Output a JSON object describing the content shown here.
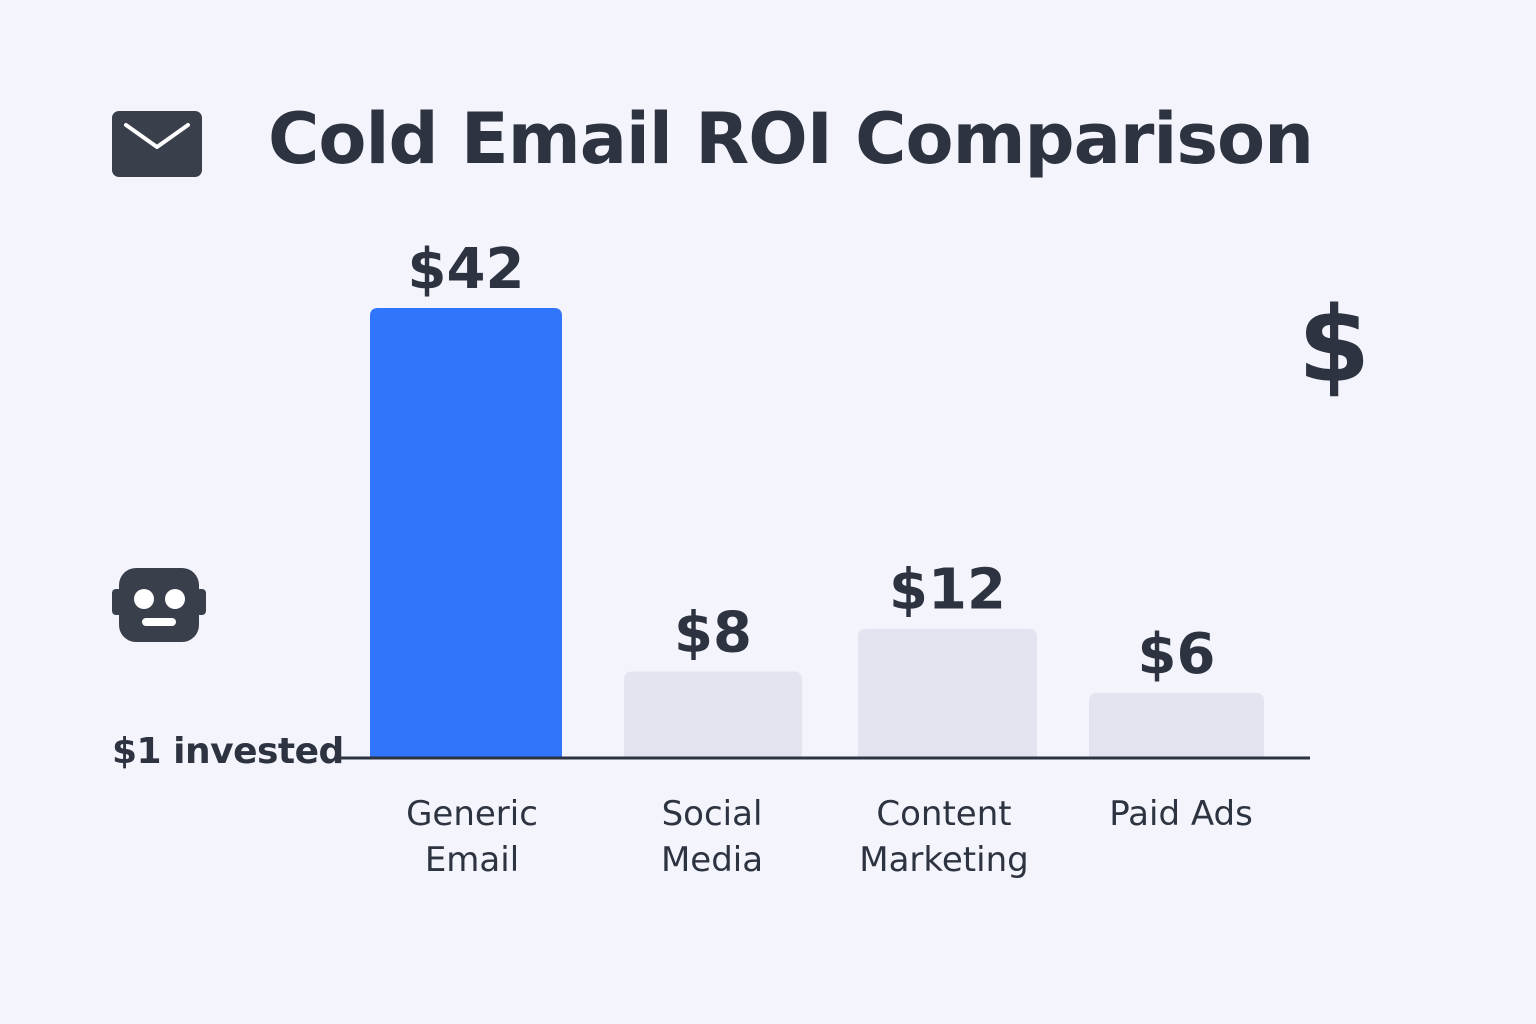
{
  "title": "Cold Email ROI Comparison",
  "icons": {
    "header": "mail-icon",
    "left": "robot-icon",
    "right": "dollar-icon"
  },
  "right_icon_glyph": "$",
  "baseline_label": "$1 invested",
  "colors": {
    "background": "#f4f5fc",
    "text": "#2d3340",
    "highlight_bar": "#2f76fd",
    "muted_bar": "#e4e4f1",
    "axis": "#2d3340"
  },
  "chart_data": {
    "type": "bar",
    "categories": [
      [
        "Generic",
        "Email"
      ],
      [
        "Social",
        "Media"
      ],
      [
        "Content",
        "Marketing"
      ],
      [
        "Paid Ads"
      ]
    ],
    "values": [
      42,
      8,
      12,
      6
    ],
    "data_labels": [
      "$42",
      "$8",
      "$12",
      "$6"
    ],
    "highlight_index": 0,
    "ylim": [
      0,
      42
    ],
    "grid": false,
    "legend": "none"
  }
}
